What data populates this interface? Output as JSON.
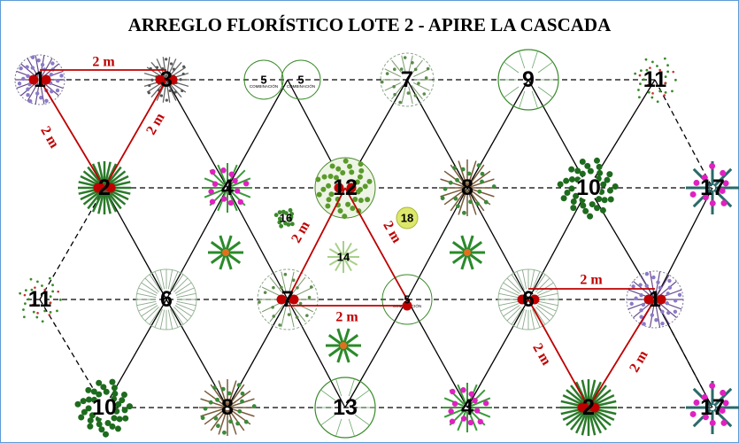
{
  "title": "ARREGLO FLORÍSTICO LOTE 2 - APIRE LA CASCADA",
  "combo_label": "COMBINACIÓN",
  "colors": {
    "frame": "#5b9bd5",
    "grid_line": "#000000",
    "measure_line": "#c00000",
    "measure_dot": "#c00000",
    "accent_pink": "#e020c0",
    "plant_green": "#3a8a2a",
    "dark_green": "#1e6b1e"
  },
  "plants": [
    {
      "id": "p1-a",
      "label": "1",
      "style": "lavender"
    },
    {
      "id": "p3",
      "label": "3",
      "style": "thorn"
    },
    {
      "id": "p5-a",
      "label": "5",
      "style": "combo"
    },
    {
      "id": "p5-b",
      "label": "5",
      "style": "combo"
    },
    {
      "id": "p7-a",
      "label": "7",
      "style": "fern"
    },
    {
      "id": "p9",
      "label": "9",
      "style": "outline"
    },
    {
      "id": "p11-a",
      "label": "11",
      "style": "sparse"
    },
    {
      "id": "p2-a",
      "label": "2",
      "style": "agave"
    },
    {
      "id": "p4-a",
      "label": "4",
      "style": "pinkflower"
    },
    {
      "id": "p12",
      "label": "12",
      "style": "shrub"
    },
    {
      "id": "p8-a",
      "label": "8",
      "style": "palm"
    },
    {
      "id": "p10-a",
      "label": "10",
      "style": "leafy"
    },
    {
      "id": "p17-a",
      "label": "17",
      "style": "bromeliad"
    },
    {
      "id": "p16",
      "label": "16",
      "style": "small"
    },
    {
      "id": "p18",
      "label": "18",
      "style": "yellow"
    },
    {
      "id": "p14",
      "label": "14",
      "style": "pale"
    },
    {
      "id": "p15-a",
      "label": "",
      "style": "star"
    },
    {
      "id": "p15-b",
      "label": "",
      "style": "star"
    },
    {
      "id": "p15-c",
      "label": "",
      "style": "star"
    },
    {
      "id": "p11-b",
      "label": "11",
      "style": "sparse"
    },
    {
      "id": "p6-a",
      "label": "6",
      "style": "grass"
    },
    {
      "id": "p7-b",
      "label": "7",
      "style": "fern"
    },
    {
      "id": "p5-c",
      "label": "5",
      "style": "combo"
    },
    {
      "id": "p6-b",
      "label": "6",
      "style": "grass"
    },
    {
      "id": "p1-b",
      "label": "1",
      "style": "lavender"
    },
    {
      "id": "p10-b",
      "label": "10",
      "style": "leafy"
    },
    {
      "id": "p8-b",
      "label": "8",
      "style": "palm"
    },
    {
      "id": "p13",
      "label": "13",
      "style": "outline"
    },
    {
      "id": "p4-b",
      "label": "4",
      "style": "pinkflower"
    },
    {
      "id": "p2-b",
      "label": "2",
      "style": "agave"
    },
    {
      "id": "p17-b",
      "label": "17",
      "style": "bromeliad"
    },
    {
      "id": "p15-d",
      "label": "",
      "style": "star"
    }
  ],
  "distance_labels": [
    {
      "id": "top",
      "text": "2 m"
    },
    {
      "id": "left",
      "text": "2 m"
    },
    {
      "id": "right",
      "text": "2 m"
    },
    {
      "id": "mid-left",
      "text": "2 m"
    },
    {
      "id": "mid-right",
      "text": "2 m"
    },
    {
      "id": "mid-bottom",
      "text": "2 m"
    },
    {
      "id": "br-top",
      "text": "2 m"
    },
    {
      "id": "br-left",
      "text": "2 m"
    },
    {
      "id": "br-right",
      "text": "2 m"
    }
  ]
}
